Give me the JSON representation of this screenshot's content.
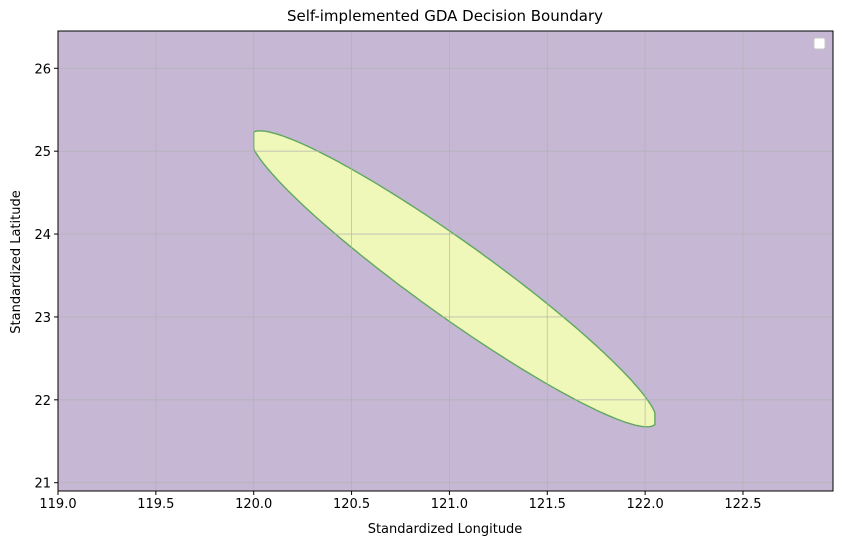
{
  "chart_data": {
    "type": "decision-boundary",
    "title": "Self-implemented GDA Decision Boundary",
    "xlabel": "Standardized Longitude",
    "ylabel": "Standardized Latitude",
    "xlim": [
      119.0,
      122.96
    ],
    "ylim": [
      20.9,
      26.45
    ],
    "xticks": [
      119.0,
      119.5,
      120.0,
      120.5,
      121.0,
      121.5,
      122.0,
      122.5
    ],
    "xtick_labels": [
      "119.0",
      "119.5",
      "120.0",
      "120.5",
      "121.0",
      "121.5",
      "122.0",
      "122.5"
    ],
    "yticks": [
      21,
      22,
      23,
      24,
      25,
      26
    ],
    "ytick_labels": [
      "21",
      "22",
      "23",
      "24",
      "25",
      "26"
    ],
    "grid": true,
    "legend": {
      "placement": "top-right",
      "entries": []
    },
    "regions": [
      {
        "class": "background",
        "color": "#c6b8d4"
      },
      {
        "class": "ellipse-region",
        "color": "#eff7b9",
        "edge_color": "#5fa85f",
        "center": [
          121.02,
          23.46
        ],
        "x_extent": [
          120.0,
          122.05
        ],
        "y_extent": [
          21.63,
          25.31
        ]
      }
    ]
  }
}
